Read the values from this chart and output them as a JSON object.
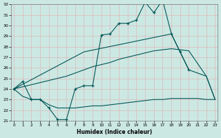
{
  "xlabel": "Humidex (Indice chaleur)",
  "background_color": "#cce8e3",
  "grid_color_pink": "#ddb8b8",
  "grid_color_teal": "#aad4ce",
  "line_color": "#005555",
  "xlim_min": 0,
  "xlim_max": 23,
  "ylim_min": 21,
  "ylim_max": 32,
  "xticks": [
    0,
    1,
    2,
    3,
    4,
    5,
    6,
    7,
    8,
    9,
    10,
    11,
    12,
    13,
    14,
    15,
    16,
    17,
    18,
    19,
    20,
    21,
    22,
    23
  ],
  "yticks": [
    21,
    22,
    23,
    24,
    25,
    26,
    27,
    28,
    29,
    30,
    31,
    32
  ],
  "main_x": [
    0,
    1,
    2,
    3,
    4,
    5,
    6,
    7,
    8,
    9,
    10,
    11,
    12,
    13,
    14,
    15,
    16,
    17,
    18,
    19,
    20
  ],
  "main_y": [
    24.0,
    24.7,
    23.0,
    23.0,
    22.2,
    21.1,
    21.1,
    24.0,
    24.3,
    24.3,
    29.1,
    29.2,
    30.2,
    30.2,
    30.5,
    32.2,
    31.2,
    32.4,
    29.2,
    27.5,
    25.8
  ],
  "upper_x": [
    0,
    8,
    18,
    19,
    20,
    21,
    22,
    23
  ],
  "upper_y": [
    24.0,
    27.5,
    29.2,
    27.5,
    25.8,
    25.5,
    25.2,
    23.0
  ],
  "lower_x": [
    0,
    1,
    2,
    3,
    4,
    5,
    6,
    7,
    8,
    9,
    10,
    11,
    12,
    13,
    14,
    15,
    16,
    17,
    18,
    19,
    20,
    21,
    22,
    23
  ],
  "lower_y": [
    24.0,
    23.3,
    23.0,
    23.0,
    22.5,
    22.2,
    22.2,
    22.2,
    22.3,
    22.4,
    22.4,
    22.5,
    22.6,
    22.7,
    22.8,
    22.9,
    23.0,
    23.0,
    23.1,
    23.1,
    23.1,
    23.1,
    23.0,
    23.0
  ],
  "diag_x": [
    0,
    1,
    2,
    3,
    4,
    5,
    6,
    7,
    8,
    9,
    10,
    11,
    12,
    13,
    14,
    15,
    16,
    17,
    18,
    19,
    20,
    21,
    22,
    23
  ],
  "diag_y": [
    24.0,
    24.2,
    24.4,
    24.6,
    24.8,
    25.0,
    25.2,
    25.5,
    25.8,
    26.1,
    26.3,
    26.5,
    26.8,
    27.0,
    27.2,
    27.4,
    27.6,
    27.7,
    27.8,
    27.7,
    27.6,
    26.4,
    25.2,
    23.0
  ]
}
